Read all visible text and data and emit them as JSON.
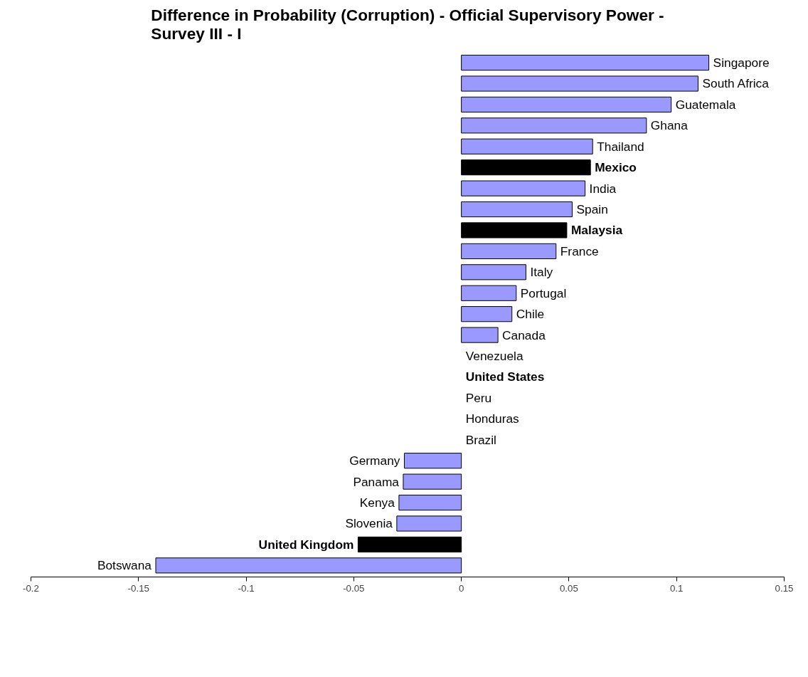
{
  "chart_data": {
    "type": "bar",
    "orientation": "horizontal",
    "title": "Difference in Probability (Corruption) - Official Supervisory Power - Survey III - I",
    "categories": [
      "Singapore",
      "South Africa",
      "Guatemala",
      "Ghana",
      "Thailand",
      "Mexico",
      "India",
      "Spain",
      "Malaysia",
      "France",
      "Italy",
      "Portugal",
      "Chile",
      "Canada",
      "Venezuela",
      "United States",
      "Peru",
      "Honduras",
      "Brazil",
      "Germany",
      "Panama",
      "Kenya",
      "Slovenia",
      "United Kingdom",
      "Botswana"
    ],
    "values": [
      0.115,
      0.11,
      0.0975,
      0.086,
      0.061,
      0.06,
      0.0575,
      0.0515,
      0.049,
      0.044,
      0.03,
      0.0255,
      0.0235,
      0.017,
      0,
      0,
      0,
      0,
      0,
      -0.0265,
      -0.027,
      -0.029,
      -0.03,
      -0.048,
      -0.142
    ],
    "colors": [
      "#9999ff",
      "#9999ff",
      "#9999ff",
      "#9999ff",
      "#9999ff",
      "#000000",
      "#9999ff",
      "#9999ff",
      "#000000",
      "#9999ff",
      "#9999ff",
      "#9999ff",
      "#9999ff",
      "#9999ff",
      "#9999ff",
      "#000000",
      "#9999ff",
      "#9999ff",
      "#9999ff",
      "#9999ff",
      "#9999ff",
      "#9999ff",
      "#9999ff",
      "#000000",
      "#9999ff"
    ],
    "xlim": [
      -0.2,
      0.15
    ],
    "xticks": [
      -0.2,
      -0.15,
      -0.1,
      -0.05,
      0,
      0.05,
      0.1,
      0.15
    ],
    "grid": false
  }
}
